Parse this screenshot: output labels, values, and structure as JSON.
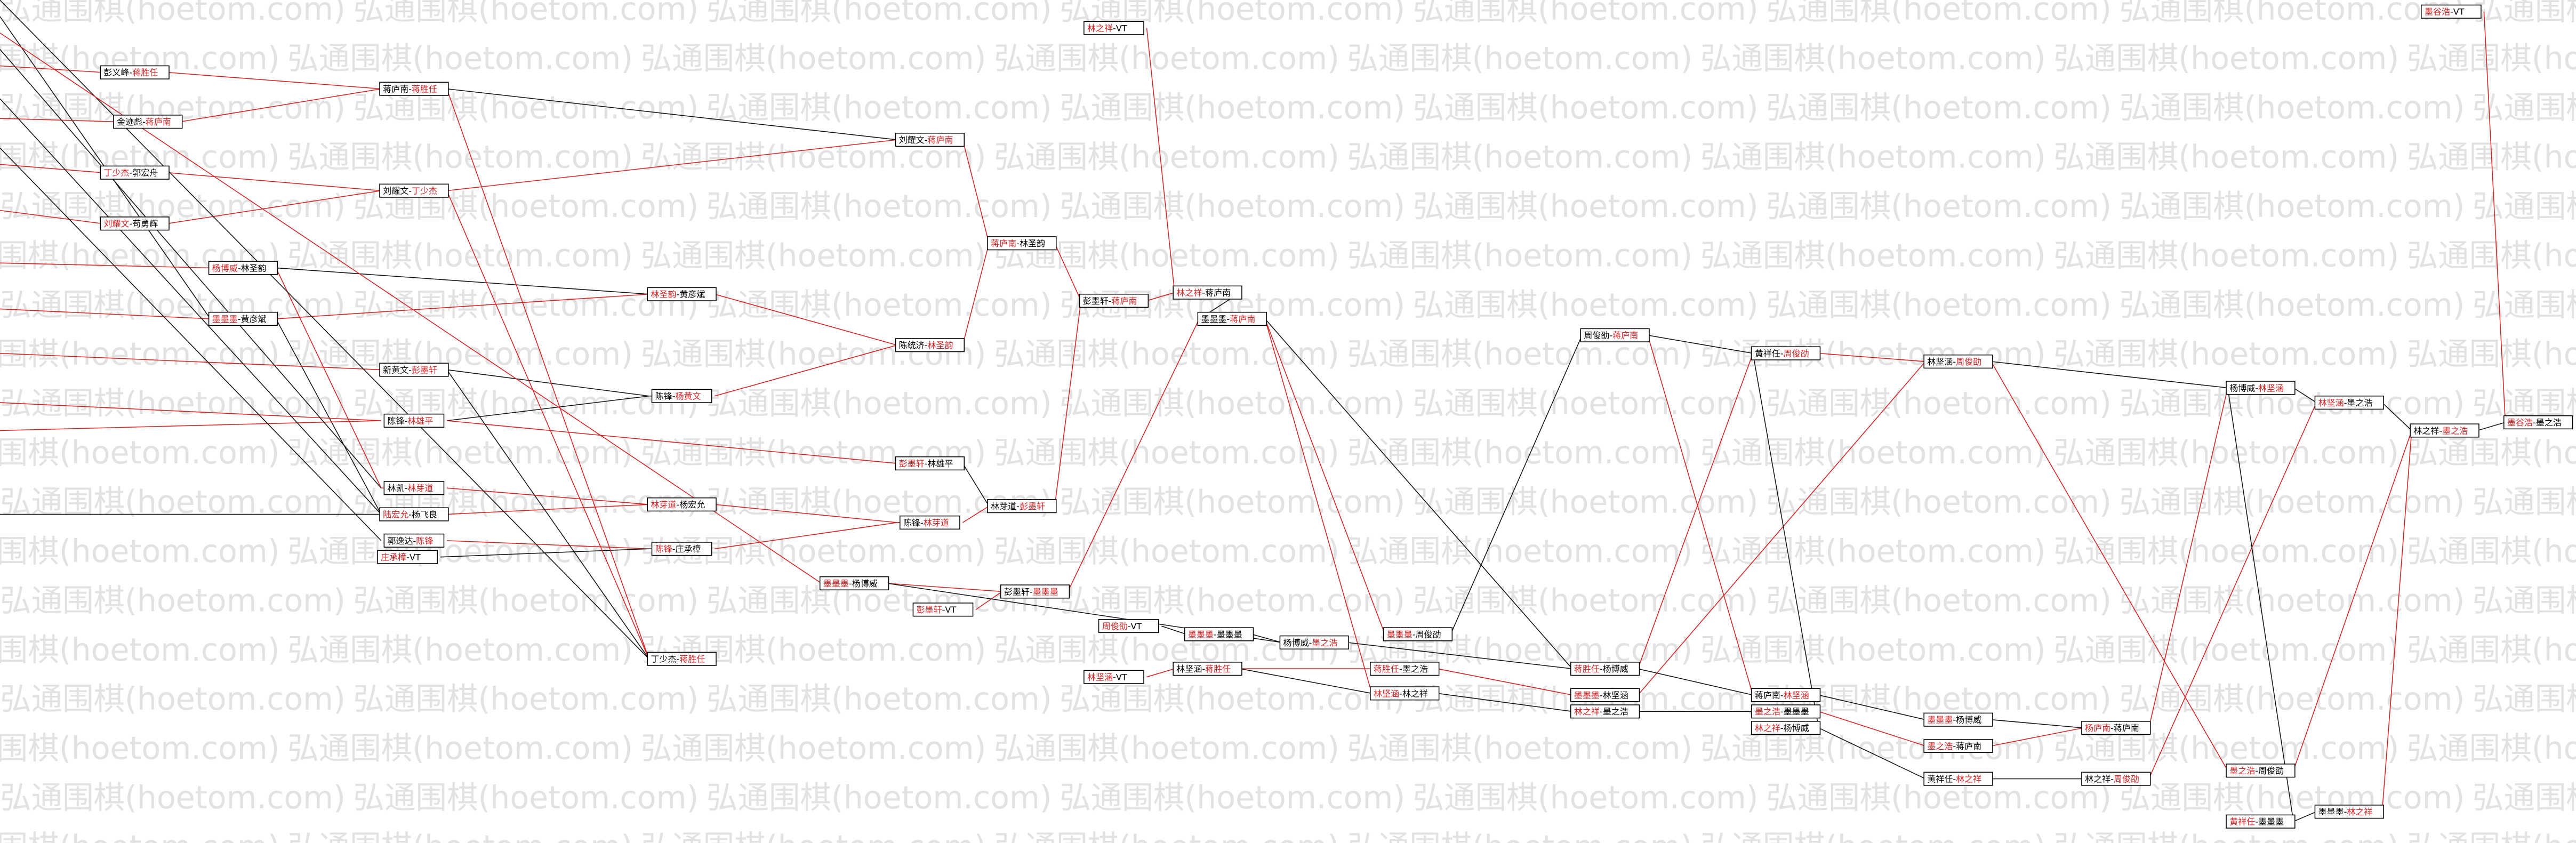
{
  "watermark": "弘通围棋(hoetom.com)",
  "separator": "-",
  "nodes": [
    {
      "left": "彭义峰",
      "right": "蒋胜任",
      "red": "right"
    },
    {
      "left": "金迹彪",
      "right": "蒋庐南",
      "red": "right"
    },
    {
      "left": "丁少杰",
      "right": "郭宏舟",
      "red": "left"
    },
    {
      "left": "刘耀文",
      "right": "苟勇辉",
      "red": "left"
    },
    {
      "left": "杨博威",
      "right": "林圣韵",
      "red": "left"
    },
    {
      "left": "墨墨墨",
      "right": "黄彦斌",
      "red": "left"
    },
    {
      "left": "蒋庐南",
      "right": "蒋胜任",
      "red": "right"
    },
    {
      "left": "刘耀文",
      "right": "丁少杰",
      "red": "right"
    },
    {
      "left": "新黄文",
      "right": "彭墨轩",
      "red": "right"
    },
    {
      "left": "陈锋",
      "right": "林雄平",
      "red": "right"
    },
    {
      "left": "林凯",
      "right": "林芽道",
      "red": "right"
    },
    {
      "left": "陆宏允",
      "right": "杨飞良",
      "red": "left"
    },
    {
      "left": "郭逸达",
      "right": "陈锋",
      "red": "right"
    },
    {
      "left": "庄承樟",
      "right": "VT",
      "red": "left"
    },
    {
      "left": "林圣韵",
      "right": "黄彦斌",
      "red": "left"
    },
    {
      "left": "陈锋",
      "right": "杨黄文",
      "red": "right"
    },
    {
      "left": "林芽道",
      "right": "杨宏允",
      "red": "left"
    },
    {
      "left": "陈锋",
      "right": "庄承樟",
      "red": "left"
    },
    {
      "left": "丁少杰",
      "right": "蒋胜任",
      "red": "right"
    },
    {
      "left": "刘耀文",
      "right": "蒋庐南",
      "red": "right"
    },
    {
      "left": "陈统济",
      "right": "林圣韵",
      "red": "right"
    },
    {
      "left": "彭墨轩",
      "right": "林雄平",
      "red": "left"
    },
    {
      "left": "陈锋",
      "right": "林芽道",
      "red": "right"
    },
    {
      "left": "墨墨墨",
      "right": "杨博威",
      "red": "left"
    },
    {
      "left": "彭墨轩",
      "right": "VT",
      "red": "left"
    },
    {
      "left": "蒋庐南",
      "right": "林圣韵",
      "red": "left"
    },
    {
      "left": "林芽道",
      "right": "彭墨轩",
      "red": "right"
    },
    {
      "left": "彭墨轩",
      "right": "墨墨墨",
      "red": "right"
    },
    {
      "left": "彭墨轩",
      "right": "蒋庐南",
      "red": "right"
    },
    {
      "left": "林之祥",
      "right": "VT",
      "red": "left"
    },
    {
      "left": "周俊劭",
      "right": "VT",
      "red": "left"
    },
    {
      "left": "林坚涵",
      "right": "VT",
      "red": "left"
    },
    {
      "left": "林之祥",
      "right": "蒋庐南",
      "red": "left"
    },
    {
      "left": "墨墨墨",
      "right": "蒋庐南",
      "red": "right"
    },
    {
      "left": "墨墨墨",
      "right": "墨墨墨",
      "red": "left"
    },
    {
      "left": "杨博威",
      "right": "墨之浩",
      "red": "right"
    },
    {
      "left": "林坚涵",
      "right": "蒋胜任",
      "red": "right"
    },
    {
      "left": "墨墨墨",
      "right": "周俊劭",
      "red": "left"
    },
    {
      "left": "蒋胜任",
      "right": "墨之浩",
      "red": "left"
    },
    {
      "left": "林坚涵",
      "right": "林之祥",
      "red": "left"
    },
    {
      "left": "周俊劭",
      "right": "蒋庐南",
      "red": "right"
    },
    {
      "left": "蒋胜任",
      "right": "杨博威",
      "red": "left"
    },
    {
      "left": "墨墨墨",
      "right": "林坚涵",
      "red": "left"
    },
    {
      "left": "林之祥",
      "right": "墨之浩",
      "red": "left"
    },
    {
      "left": "黄祥任",
      "right": "周俊劭",
      "red": "right"
    },
    {
      "left": "蒋庐南",
      "right": "林坚涵",
      "red": "right"
    },
    {
      "left": "墨之浩",
      "right": "墨墨墨",
      "red": "left"
    },
    {
      "left": "林之祥",
      "right": "杨博威",
      "red": "left"
    },
    {
      "left": "林坚涵",
      "right": "周俊劭",
      "red": "right"
    },
    {
      "left": "墨墨墨",
      "right": "杨博威",
      "red": "left"
    },
    {
      "left": "墨之浩",
      "right": "蒋庐南",
      "red": "left"
    },
    {
      "left": "黄祥任",
      "right": "林之祥",
      "red": "right"
    },
    {
      "left": "杨博威",
      "right": "林坚涵",
      "red": "right"
    },
    {
      "left": "林坚涵",
      "right": "墨之浩",
      "red": "left"
    },
    {
      "left": "林之祥",
      "right": "墨之浩",
      "red": "right"
    },
    {
      "left": "墨谷浩",
      "right": "墨之浩",
      "red": "left"
    },
    {
      "left": "墨谷浩",
      "right": "VT",
      "red": "left"
    },
    {
      "left": "杨庐南",
      "right": "蒋庐南",
      "red": "left"
    },
    {
      "left": "林之祥",
      "right": "周俊劭",
      "red": "right"
    },
    {
      "left": "墨之浩",
      "right": "周俊劭",
      "red": "left"
    },
    {
      "left": "黄祥任",
      "right": "墨墨墨",
      "red": "left"
    },
    {
      "left": "墨墨墨",
      "right": "林之祥",
      "red": "right"
    }
  ]
}
